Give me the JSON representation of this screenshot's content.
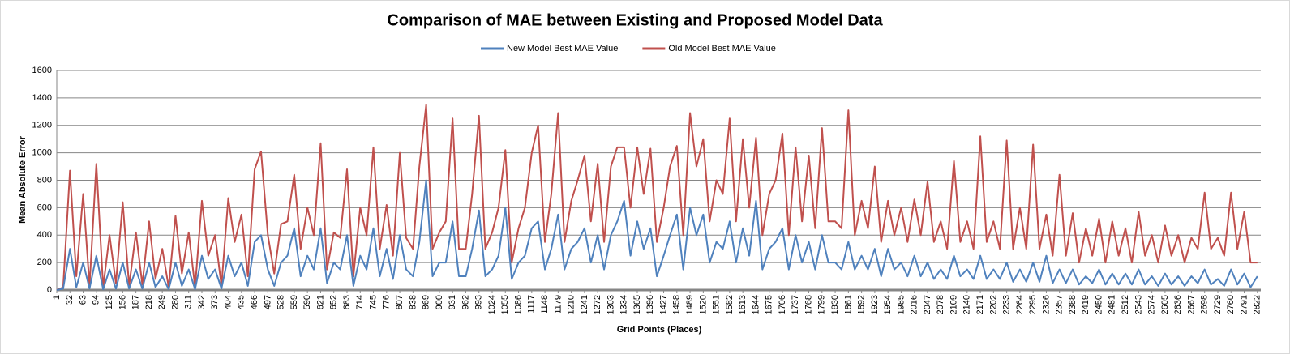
{
  "chart_data": {
    "type": "line",
    "title": "Comparison of MAE between Existing and Proposed Model Data",
    "x_label": "Grid Points (Places)",
    "y_label": "Mean Absolute Error",
    "grid": true,
    "legend": "top",
    "xlim": [
      1,
      2830
    ],
    "ylim": [
      0,
      1600
    ],
    "yticks": [
      0,
      200,
      400,
      600,
      800,
      1000,
      1200,
      1400,
      1600
    ],
    "xticks": [
      1,
      32,
      63,
      94,
      125,
      156,
      187,
      218,
      249,
      280,
      311,
      342,
      373,
      404,
      435,
      466,
      497,
      528,
      559,
      590,
      621,
      652,
      683,
      714,
      745,
      776,
      807,
      838,
      869,
      900,
      931,
      962,
      993,
      1024,
      1055,
      1086,
      1117,
      1148,
      1179,
      1210,
      1241,
      1272,
      1303,
      1334,
      1365,
      1396,
      1427,
      1458,
      1489,
      1520,
      1551,
      1582,
      1613,
      1644,
      1675,
      1706,
      1737,
      1768,
      1799,
      1830,
      1861,
      1892,
      1923,
      1954,
      1985,
      2016,
      2047,
      2078,
      2109,
      2140,
      2171,
      2202,
      2233,
      2264,
      2295,
      2326,
      2357,
      2388,
      2419,
      2450,
      2481,
      2512,
      2543,
      2574,
      2605,
      2636,
      2667,
      2698,
      2729,
      2760,
      2791,
      2822
    ],
    "x": [
      1,
      16,
      32,
      47,
      63,
      78,
      94,
      110,
      125,
      140,
      156,
      171,
      187,
      202,
      218,
      233,
      249,
      264,
      280,
      295,
      311,
      326,
      342,
      357,
      373,
      388,
      404,
      419,
      435,
      450,
      466,
      481,
      497,
      512,
      528,
      543,
      559,
      574,
      590,
      605,
      621,
      636,
      652,
      667,
      683,
      698,
      714,
      729,
      745,
      760,
      776,
      791,
      807,
      822,
      838,
      853,
      869,
      884,
      900,
      915,
      931,
      946,
      962,
      977,
      993,
      1008,
      1024,
      1039,
      1055,
      1070,
      1086,
      1101,
      1117,
      1132,
      1148,
      1163,
      1179,
      1194,
      1210,
      1225,
      1241,
      1256,
      1272,
      1287,
      1303,
      1318,
      1334,
      1349,
      1365,
      1380,
      1396,
      1411,
      1427,
      1442,
      1458,
      1473,
      1489,
      1504,
      1520,
      1535,
      1551,
      1566,
      1582,
      1597,
      1613,
      1628,
      1644,
      1659,
      1675,
      1690,
      1706,
      1721,
      1737,
      1752,
      1768,
      1783,
      1799,
      1814,
      1830,
      1845,
      1861,
      1876,
      1892,
      1907,
      1923,
      1938,
      1954,
      1969,
      1985,
      2000,
      2016,
      2031,
      2047,
      2062,
      2078,
      2093,
      2109,
      2124,
      2140,
      2155,
      2171,
      2186,
      2202,
      2217,
      2233,
      2248,
      2264,
      2279,
      2295,
      2310,
      2326,
      2341,
      2357,
      2372,
      2388,
      2403,
      2419,
      2434,
      2450,
      2465,
      2481,
      2496,
      2512,
      2527,
      2543,
      2558,
      2574,
      2589,
      2605,
      2620,
      2636,
      2651,
      2667,
      2682,
      2698,
      2713,
      2729,
      2744,
      2760,
      2775,
      2791,
      2806,
      2822
    ],
    "series": [
      {
        "name": "New Model Best MAE Value",
        "color": "#4f81bd",
        "values": [
          0,
          10,
          300,
          20,
          200,
          10,
          250,
          5,
          150,
          10,
          200,
          10,
          150,
          10,
          200,
          20,
          100,
          5,
          200,
          30,
          150,
          5,
          250,
          80,
          150,
          10,
          250,
          100,
          200,
          30,
          350,
          400,
          150,
          30,
          200,
          250,
          450,
          100,
          250,
          150,
          450,
          50,
          200,
          150,
          400,
          30,
          250,
          150,
          450,
          100,
          300,
          80,
          400,
          150,
          100,
          350,
          800,
          100,
          200,
          200,
          500,
          100,
          100,
          300,
          580,
          100,
          150,
          250,
          600,
          80,
          200,
          250,
          450,
          500,
          150,
          300,
          550,
          150,
          300,
          350,
          450,
          200,
          400,
          150,
          400,
          500,
          650,
          250,
          500,
          300,
          450,
          100,
          250,
          400,
          550,
          150,
          600,
          400,
          550,
          200,
          350,
          300,
          500,
          200,
          450,
          250,
          650,
          150,
          300,
          350,
          450,
          150,
          400,
          200,
          350,
          150,
          400,
          200,
          200,
          150,
          350,
          150,
          250,
          150,
          300,
          100,
          300,
          150,
          200,
          100,
          250,
          100,
          200,
          80,
          150,
          80,
          250,
          100,
          150,
          80,
          250,
          80,
          150,
          80,
          200,
          60,
          150,
          60,
          200,
          60,
          250,
          50,
          150,
          50,
          150,
          40,
          100,
          50,
          150,
          40,
          120,
          40,
          120,
          40,
          150,
          40,
          100,
          30,
          120,
          40,
          100,
          30,
          100,
          50,
          150,
          40,
          80,
          30,
          150,
          40,
          120,
          20,
          100
        ]
      },
      {
        "name": "Old Model Best MAE Value",
        "color": "#c0504d",
        "values": [
          0,
          20,
          870,
          100,
          700,
          30,
          920,
          20,
          400,
          50,
          640,
          30,
          420,
          40,
          500,
          80,
          300,
          20,
          540,
          120,
          420,
          20,
          650,
          250,
          400,
          30,
          670,
          350,
          550,
          100,
          880,
          1010,
          400,
          120,
          480,
          500,
          840,
          300,
          600,
          400,
          1070,
          150,
          420,
          380,
          880,
          100,
          600,
          400,
          1040,
          300,
          620,
          250,
          1000,
          380,
          300,
          900,
          1350,
          300,
          420,
          500,
          1250,
          300,
          300,
          700,
          1270,
          300,
          420,
          600,
          1020,
          200,
          450,
          600,
          1000,
          1200,
          350,
          700,
          1290,
          350,
          650,
          800,
          980,
          500,
          920,
          350,
          900,
          1040,
          1040,
          600,
          1040,
          700,
          1030,
          350,
          600,
          900,
          1050,
          400,
          1290,
          900,
          1100,
          500,
          800,
          700,
          1250,
          500,
          1100,
          600,
          1110,
          400,
          700,
          800,
          1140,
          400,
          1040,
          500,
          980,
          450,
          1180,
          500,
          500,
          450,
          1310,
          400,
          650,
          450,
          900,
          350,
          650,
          400,
          600,
          350,
          660,
          400,
          790,
          350,
          500,
          300,
          940,
          350,
          500,
          300,
          1120,
          350,
          500,
          300,
          1090,
          300,
          600,
          300,
          1060,
          300,
          550,
          250,
          840,
          250,
          560,
          200,
          450,
          250,
          520,
          200,
          500,
          250,
          450,
          200,
          570,
          250,
          400,
          200,
          470,
          250,
          400,
          200,
          380,
          300,
          710,
          300,
          380,
          250,
          710,
          300,
          570,
          200,
          200
        ]
      }
    ]
  }
}
